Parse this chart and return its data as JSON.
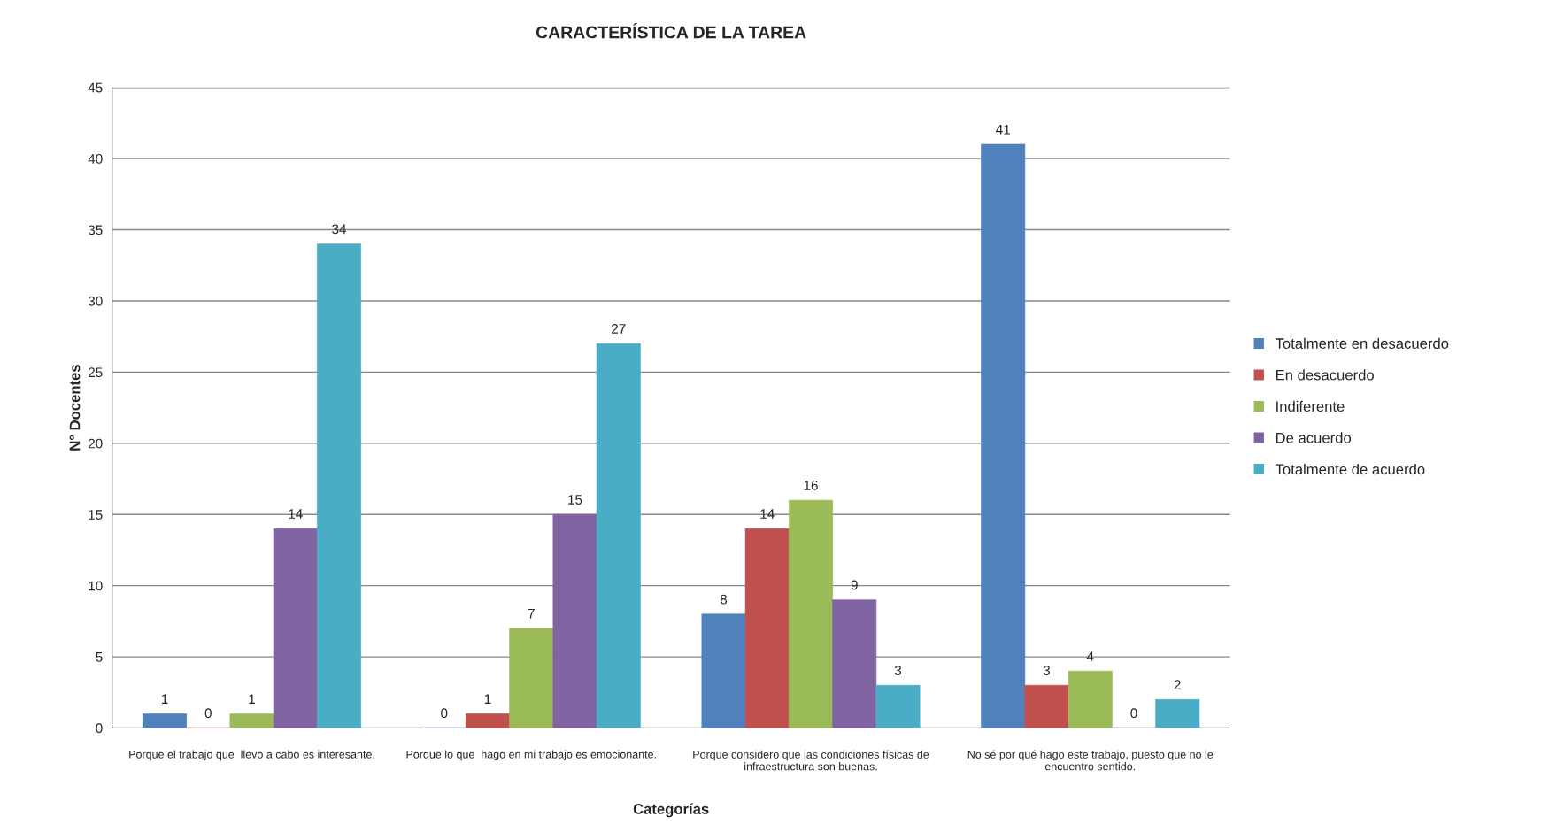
{
  "chart_data": {
    "type": "bar",
    "title": "CARACTERÍSTICA DE LA TAREA",
    "xlabel": "Categorías",
    "ylabel": "N° Docentes",
    "categories": [
      "Porque el trabajo que  llevo a cabo es interesante.",
      "Porque lo que  hago en mi trabajo es emocionante.",
      "Porque considero que las condiciones físicas de\ninfraestructura son buenas.",
      "No sé por qué hago este trabajo, puesto que no le\nencuentro sentido."
    ],
    "series": [
      {
        "name": "Totalmente en desacuerdo",
        "color": "#4f81bd",
        "values": [
          1,
          0,
          8,
          41
        ]
      },
      {
        "name": "En desacuerdo",
        "color": "#c0504d",
        "values": [
          0,
          1,
          14,
          3
        ]
      },
      {
        "name": "Indiferente",
        "color": "#9bbb59",
        "values": [
          1,
          7,
          16,
          4
        ]
      },
      {
        "name": "De acuerdo",
        "color": "#8064a2",
        "values": [
          14,
          15,
          9,
          0
        ]
      },
      {
        "name": "Totalmente de acuerdo",
        "color": "#4bacc6",
        "values": [
          34,
          27,
          3,
          2
        ]
      }
    ],
    "ylim": [
      0,
      45
    ],
    "yticks": [
      0,
      5,
      10,
      15,
      20,
      25,
      30,
      35,
      40,
      45
    ],
    "grid": "y",
    "legend": "right",
    "data_labels": true
  }
}
